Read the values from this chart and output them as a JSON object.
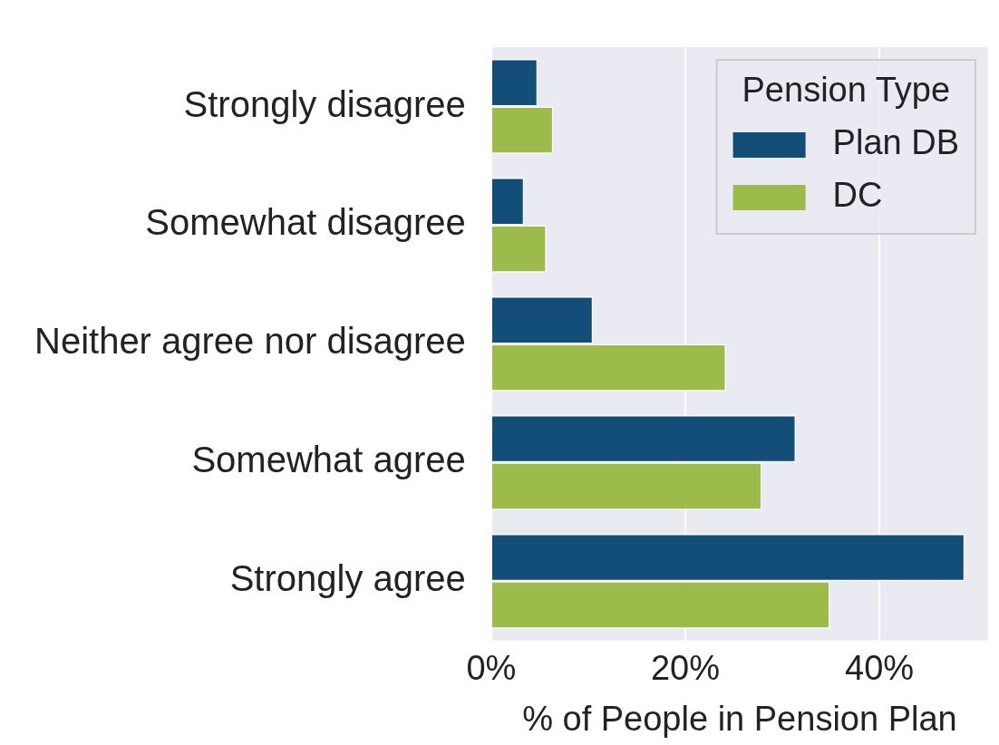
{
  "chart_data": {
    "type": "bar",
    "orientation": "horizontal",
    "xlabel": "% of People in Pension Plan",
    "legend_title": "Pension Type",
    "legend": "top right",
    "grid": "x",
    "categories": [
      "Strongly disagree",
      "Somewhat disagree",
      "Neither agree nor disagree",
      "Somewhat agree",
      "Strongly agree"
    ],
    "series": [
      {
        "name": "Plan DB",
        "color": "#124e78",
        "values": [
          4.8,
          3.4,
          10.5,
          31.4,
          48.8
        ]
      },
      {
        "name": "DC",
        "color": "#9dbb4a",
        "values": [
          6.4,
          5.7,
          24.2,
          27.9,
          34.9
        ]
      }
    ],
    "xlim": [
      0,
      51.2
    ],
    "xticks": [
      {
        "value": 0,
        "label": "0%"
      },
      {
        "value": 20,
        "label": "20%"
      },
      {
        "value": 40,
        "label": "40%"
      }
    ]
  }
}
